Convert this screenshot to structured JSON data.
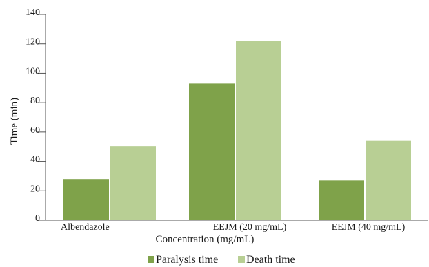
{
  "chart_data": {
    "type": "bar",
    "categories": [
      "Albendazole",
      "EEJM (20 mg/mL)",
      "EEJM (40 mg/mL)"
    ],
    "series": [
      {
        "name": "Paralysis time",
        "values": [
          28,
          93,
          27
        ],
        "color": "#7fa24a"
      },
      {
        "name": "Death time",
        "values": [
          50.5,
          122,
          54
        ],
        "color": "#b8cf94"
      }
    ],
    "xlabel": "Concentration (mg/mL)",
    "ylabel": "Time (min)",
    "ylim": [
      0,
      140
    ],
    "yticks": [
      0,
      20,
      40,
      60,
      80,
      100,
      120,
      140
    ],
    "grid": false,
    "legend_position": "bottom"
  }
}
